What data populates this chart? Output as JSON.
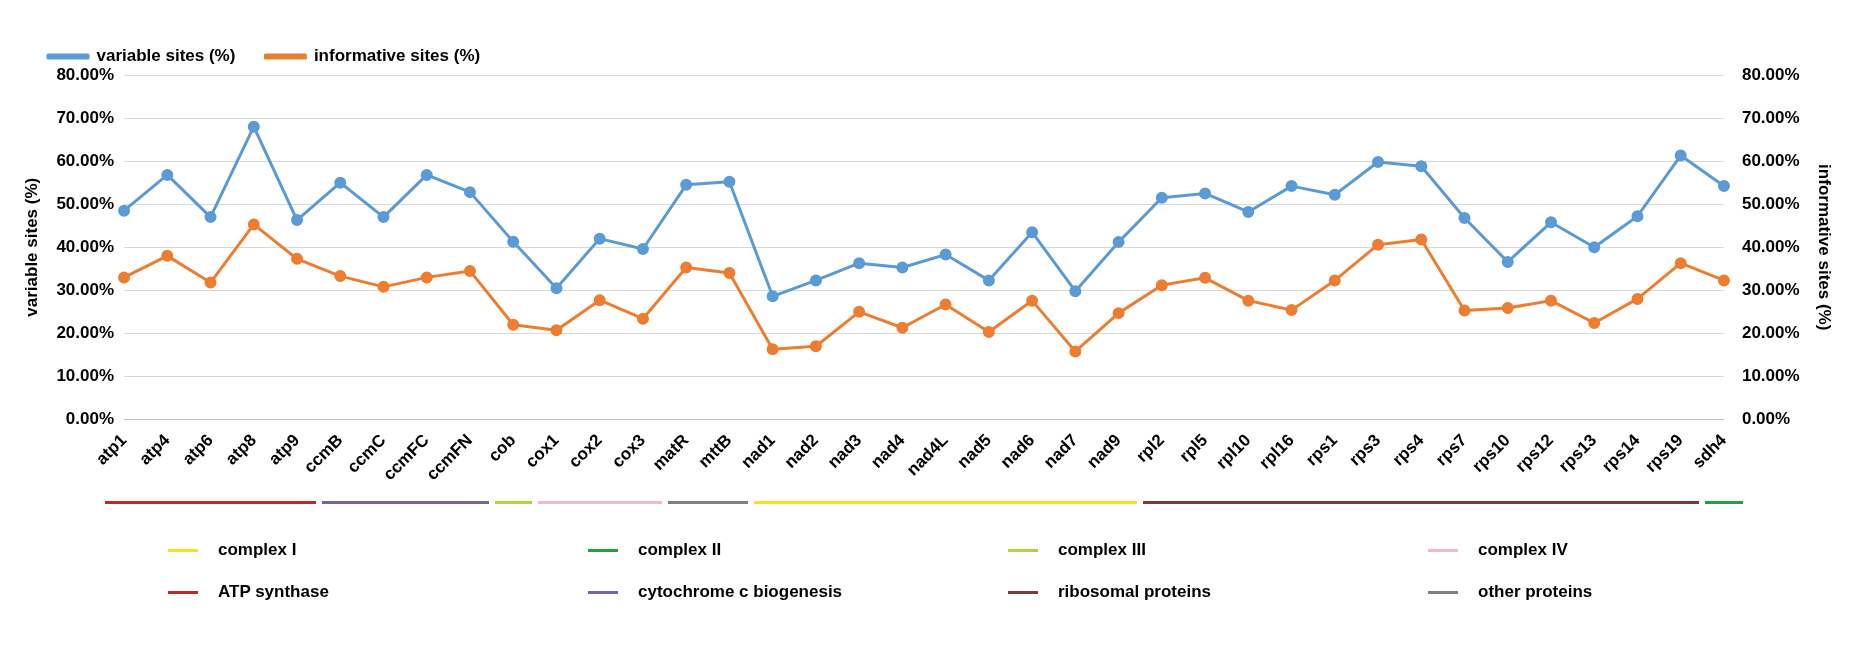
{
  "chart_data": {
    "type": "line",
    "xlabel": null,
    "ylabel": "variable sites (%)",
    "y2label": "informative sites (%)",
    "categories": [
      "atp1",
      "atp4",
      "atp6",
      "atp8",
      "atp9",
      "ccmB",
      "ccmC",
      "ccmFC",
      "ccmFN",
      "cob",
      "cox1",
      "cox2",
      "cox3",
      "matR",
      "mttB",
      "nad1",
      "nad2",
      "nad3",
      "nad4",
      "nad4L",
      "nad5",
      "nad6",
      "nad7",
      "nad9",
      "rpl2",
      "rpl5",
      "rpl10",
      "rpl16",
      "rps1",
      "rps3",
      "rps4",
      "rps7",
      "rps10",
      "rps12",
      "rps13",
      "rps14",
      "rps19",
      "sdh4"
    ],
    "series": [
      {
        "name": "variable sites (%)",
        "color": "#5b9bd5",
        "values": [
          48.5,
          56.8,
          47,
          68,
          46.3,
          55,
          47,
          56.8,
          52.8,
          41.3,
          30.5,
          42,
          39.6,
          54.5,
          55.2,
          28.6,
          32.3,
          36.3,
          35.3,
          38.3,
          32.3,
          43.5,
          29.8,
          41.2,
          51.5,
          52.5,
          48.2,
          54.2,
          52.2,
          59.8,
          58.8,
          46.8,
          36.6,
          45.8,
          40,
          47.2,
          61.3,
          54.2
        ]
      },
      {
        "name": "informative sites (%)",
        "color": "#ed7d31",
        "axis": "y2",
        "values": [
          33,
          38,
          31.8,
          45.3,
          37.3,
          33.3,
          30.8,
          33,
          34.5,
          22,
          20.7,
          27.7,
          23.4,
          35.3,
          34,
          16.3,
          17,
          25,
          21.3,
          26.7,
          20.3,
          27.6,
          15.8,
          24.7,
          31.2,
          32.9,
          27.6,
          25.4,
          32.3,
          40.6,
          41.8,
          25.3,
          25.9,
          27.6,
          22.4,
          28,
          36.3,
          32.3
        ]
      }
    ],
    "ylim": [
      0,
      80
    ],
    "yticks": [
      {
        "value": 0,
        "label": "0.00%"
      },
      {
        "value": 10,
        "label": "10.00%"
      },
      {
        "value": 20,
        "label": "20.00%"
      },
      {
        "value": 30,
        "label": "30.00%"
      },
      {
        "value": 40,
        "label": "40.00%"
      },
      {
        "value": 50,
        "label": "50.00%"
      },
      {
        "value": 60,
        "label": "60.00%"
      },
      {
        "value": 70,
        "label": "70.00%"
      },
      {
        "value": 80,
        "label": "80.00%"
      }
    ],
    "y2lim": [
      0,
      80
    ],
    "y2ticks": [
      {
        "value": 0,
        "label": "0.00%"
      },
      {
        "value": 10,
        "label": "10.00%"
      },
      {
        "value": 20,
        "label": "20.00%"
      },
      {
        "value": 30,
        "label": "30.00%"
      },
      {
        "value": 40,
        "label": "40.00%"
      },
      {
        "value": 50,
        "label": "50.00%"
      },
      {
        "value": 60,
        "label": "60.00%"
      },
      {
        "value": 70,
        "label": "70.00%"
      },
      {
        "value": 80,
        "label": "80.00%"
      }
    ],
    "annotations": [
      "complex I",
      "complex II",
      "complex III",
      "complex IV",
      "ATP synthase",
      "cytochrome c biogenesis",
      "ribosomal proteins",
      "other proteins"
    ],
    "grid": "y",
    "legend": "top left",
    "marker": "circle",
    "line_style": "solid"
  }
}
